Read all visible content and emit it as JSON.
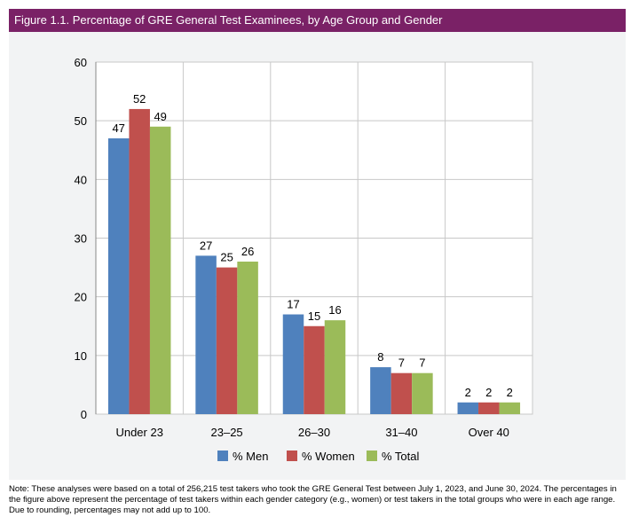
{
  "chart_data": {
    "type": "bar",
    "title": "Figure 1.1. Percentage of GRE General Test Examinees, by Age Group and Gender",
    "categories": [
      "Under 23",
      "23–25",
      "26–30",
      "31–40",
      "Over 40"
    ],
    "series": [
      {
        "name": "% Men",
        "color": "#4f81bd",
        "values": [
          47,
          27,
          17,
          8,
          2
        ]
      },
      {
        "name": "% Women",
        "color": "#c0504d",
        "values": [
          52,
          25,
          15,
          7,
          2
        ]
      },
      {
        "name": "% Total",
        "color": "#9bbb59",
        "values": [
          49,
          26,
          16,
          7,
          2
        ]
      }
    ],
    "ylim": [
      0,
      60
    ],
    "yticks": [
      0,
      10,
      20,
      30,
      40,
      50,
      60
    ],
    "xlabel": "",
    "ylabel": "",
    "grid": true,
    "legend_position": "bottom"
  },
  "note": "Note: These analyses were based on a total of 256,215 test takers who took the GRE General Test between July 1, 2023, and June 30, 2024. The percentages in the figure above represent the percentage of test takers within each gender category (e.g., women) or test takers in the total groups who were in each age range. Due to rounding, percentages may not add up to 100.",
  "colors": {
    "title_bar": "#7a2166",
    "panel_background": "#f2f3f4"
  }
}
